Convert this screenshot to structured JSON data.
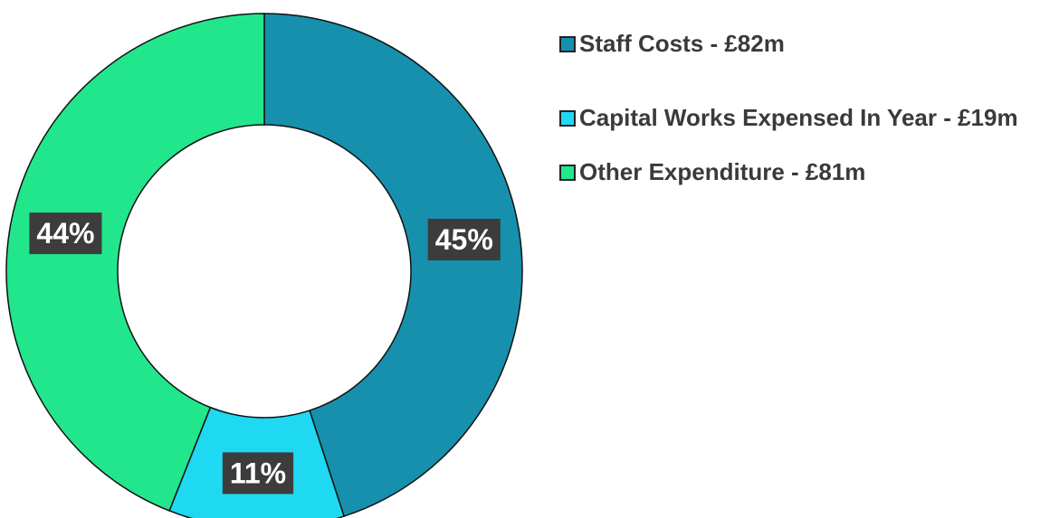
{
  "chart_data": {
    "type": "donut",
    "categories": [
      "Staff Costs - £82m",
      "Capital Works Expensed In Year - £19m",
      "Other Expenditure - £81m"
    ],
    "values": [
      45,
      11,
      44
    ],
    "value_labels": [
      "45%",
      "11%",
      "44%"
    ],
    "colors": [
      "#1690ad",
      "#1fd8f2",
      "#22e68c"
    ],
    "legend": "right"
  }
}
